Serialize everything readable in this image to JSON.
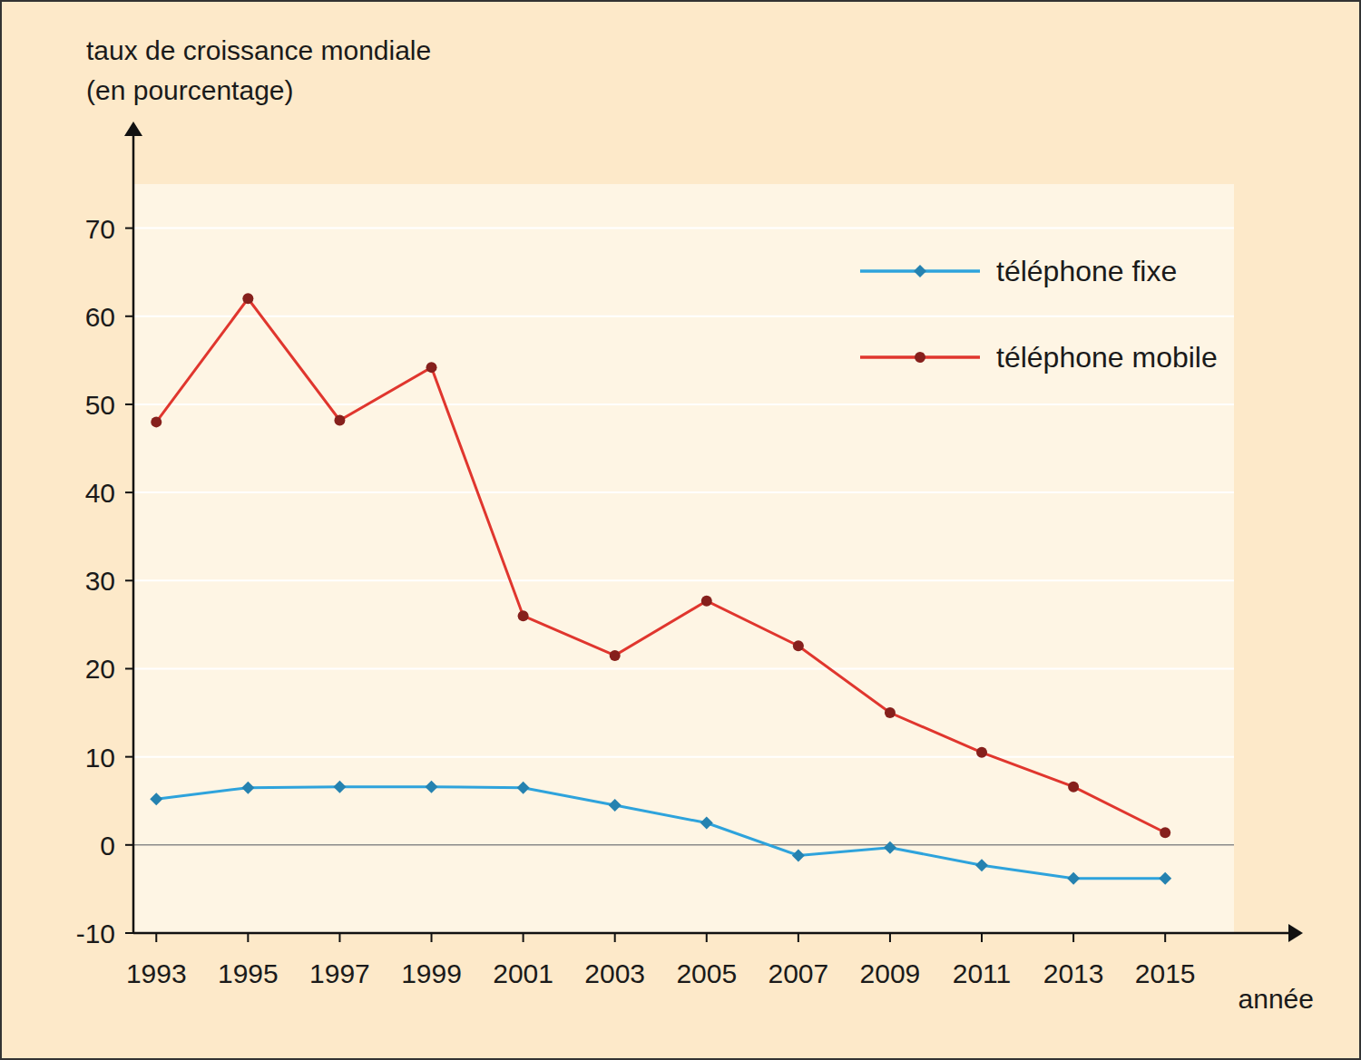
{
  "chart_data": {
    "type": "line",
    "y_label": [
      "taux de croissance mondiale",
      "(en pourcentage)"
    ],
    "x_label": "année",
    "x": [
      1993,
      1995,
      1997,
      1999,
      2001,
      2003,
      2005,
      2007,
      2009,
      2011,
      2013,
      2015
    ],
    "series": [
      {
        "name": "téléphone fixe",
        "color": "#2ea3dc",
        "marker": "diamond",
        "line_style": "solid",
        "values": [
          5.2,
          6.5,
          6.6,
          6.6,
          6.5,
          4.5,
          2.5,
          -1.2,
          -0.3,
          -2.3,
          -3.8,
          -3.8
        ]
      },
      {
        "name": "téléphone mobile",
        "color": "#e0362e",
        "marker": "circle",
        "line_style": "solid",
        "values": [
          48,
          62,
          48.2,
          54.2,
          26,
          21.5,
          27.7,
          22.6,
          15,
          10.5,
          6.6,
          1.4
        ]
      }
    ],
    "xlim": [
      1992.5,
      2016.5
    ],
    "xticks": [
      1993,
      1995,
      1997,
      1999,
      2001,
      2003,
      2005,
      2007,
      2009,
      2011,
      2013,
      2015
    ],
    "ylim": [
      -10,
      75
    ],
    "yticks": [
      -10,
      0,
      10,
      20,
      30,
      40,
      50,
      60,
      70
    ],
    "grid": true,
    "legend": "top-right"
  }
}
